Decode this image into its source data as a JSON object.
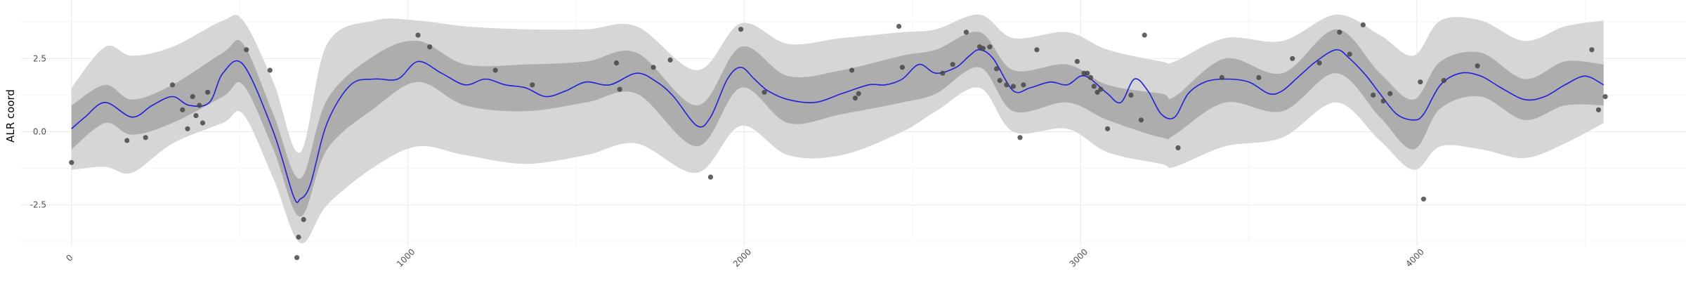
{
  "chart_data": {
    "type": "line",
    "title": "",
    "xlabel": "",
    "ylabel": "ALR coord",
    "xlim": [
      -150,
      4800
    ],
    "ylim": [
      -3.9,
      4.5
    ],
    "x_ticks": [
      0,
      1000,
      2000,
      3000,
      4000
    ],
    "x_tick_labels": [
      "0",
      "1000",
      "2000",
      "3000",
      "4000"
    ],
    "y_ticks": [
      -2.5,
      0.0,
      2.5
    ],
    "y_tick_labels": [
      "-2.5",
      "0.0",
      "2.5"
    ],
    "grid": true,
    "legend": "none",
    "colors": {
      "line": "#1f1fdc",
      "inner_band": "#adadad",
      "outer_band": "#d6d6d6",
      "points": "#474747",
      "grid_major": "#ebebeb",
      "grid_minor": "#f5f5f5"
    },
    "series": [
      {
        "kind": "mean-line",
        "x": [
          0,
          40,
          100,
          180,
          240,
          300,
          350,
          410,
          450,
          510,
          600,
          660,
          680,
          710,
          760,
          830,
          900,
          970,
          1030,
          1100,
          1170,
          1230,
          1290,
          1350,
          1410,
          1470,
          1530,
          1600,
          1680,
          1740,
          1790,
          1860,
          1900,
          1950,
          1990,
          2030,
          2070,
          2130,
          2210,
          2290,
          2370,
          2420,
          2470,
          2520,
          2570,
          2630,
          2670,
          2700,
          2740,
          2800,
          2850,
          2910,
          2960,
          3000,
          3030,
          3080,
          3120,
          3160,
          3200,
          3240,
          3280,
          3320,
          3370,
          3430,
          3500,
          3560,
          3600,
          3650,
          3700,
          3760,
          3800,
          3850,
          3890,
          3940,
          3990,
          4020,
          4070,
          4130,
          4190,
          4250,
          4320,
          4380,
          4440,
          4500,
          4555
        ],
        "y": [
          0.1,
          0.5,
          1.0,
          0.5,
          0.9,
          1.2,
          0.9,
          1.0,
          2.0,
          2.3,
          0.0,
          -2.2,
          -2.3,
          -1.8,
          0.3,
          1.6,
          1.8,
          1.8,
          2.4,
          2.0,
          1.6,
          1.8,
          1.6,
          1.5,
          1.2,
          1.4,
          1.7,
          1.6,
          2.0,
          1.7,
          1.2,
          0.2,
          0.5,
          1.8,
          2.2,
          1.8,
          1.4,
          1.1,
          1.0,
          1.3,
          1.6,
          1.6,
          1.8,
          2.3,
          2.0,
          2.2,
          2.6,
          2.8,
          2.5,
          1.4,
          1.5,
          1.7,
          1.6,
          1.9,
          1.8,
          1.3,
          1.0,
          1.8,
          1.4,
          0.6,
          0.5,
          1.3,
          1.7,
          1.8,
          1.7,
          1.3,
          1.4,
          1.9,
          2.4,
          2.8,
          2.5,
          1.9,
          1.3,
          0.6,
          0.4,
          0.6,
          1.6,
          2.0,
          1.9,
          1.5,
          1.1,
          1.2,
          1.6,
          1.9,
          1.6
        ]
      },
      {
        "kind": "inner-band",
        "x": [
          0,
          100,
          180,
          300,
          450,
          510,
          600,
          680,
          760,
          900,
          1030,
          1170,
          1350,
          1530,
          1680,
          1860,
          1990,
          2130,
          2290,
          2470,
          2570,
          2700,
          2800,
          2960,
          3080,
          3240,
          3280,
          3430,
          3600,
          3760,
          3890,
          3990,
          4070,
          4190,
          4320,
          4440,
          4555
        ],
        "lower": [
          -0.6,
          0.3,
          -0.1,
          0.3,
          1.2,
          1.6,
          -0.6,
          -2.9,
          -0.6,
          0.8,
          1.7,
          0.9,
          0.7,
          1.0,
          1.3,
          -0.5,
          1.5,
          0.3,
          0.6,
          1.0,
          1.3,
          2.2,
          0.7,
          1.0,
          0.4,
          -0.2,
          -0.1,
          1.0,
          0.7,
          2.0,
          0.5,
          -0.6,
          0.8,
          1.2,
          0.4,
          0.9,
          0.9
        ],
        "upper": [
          0.9,
          1.6,
          1.1,
          1.6,
          2.7,
          3.0,
          0.6,
          -1.6,
          1.1,
          2.6,
          3.1,
          2.3,
          2.3,
          2.4,
          2.7,
          0.9,
          2.9,
          1.9,
          2.1,
          2.6,
          2.8,
          3.4,
          2.1,
          2.3,
          1.6,
          1.3,
          1.2,
          2.5,
          2.0,
          3.5,
          2.0,
          1.1,
          2.4,
          2.7,
          1.8,
          2.4,
          2.3
        ]
      },
      {
        "kind": "outer-band",
        "x": [
          0,
          100,
          180,
          300,
          450,
          510,
          600,
          680,
          760,
          900,
          1030,
          1170,
          1350,
          1530,
          1680,
          1860,
          1990,
          2130,
          2290,
          2470,
          2570,
          2700,
          2800,
          2960,
          3080,
          3240,
          3280,
          3430,
          3600,
          3760,
          3890,
          3990,
          4070,
          4190,
          4320,
          4440,
          4555
        ],
        "lower": [
          -1.3,
          -1.2,
          -1.4,
          -0.4,
          0.3,
          0.6,
          -1.6,
          -3.8,
          -2.5,
          -1.2,
          -0.5,
          -0.8,
          -1.1,
          -0.8,
          -0.4,
          -1.4,
          0.2,
          -0.8,
          -0.8,
          0.0,
          0.7,
          1.5,
          0.0,
          0.1,
          -0.7,
          -1.1,
          -1.2,
          -0.5,
          -0.2,
          1.0,
          -0.3,
          -1.3,
          -0.5,
          -0.6,
          -0.9,
          -0.4,
          0.3
        ],
        "upper": [
          1.5,
          2.9,
          2.6,
          2.9,
          3.8,
          3.8,
          1.7,
          -0.7,
          3.0,
          3.8,
          3.8,
          3.6,
          3.5,
          3.5,
          3.6,
          2.1,
          3.7,
          3.0,
          3.2,
          3.4,
          3.5,
          4.0,
          3.2,
          3.4,
          2.8,
          2.4,
          2.4,
          3.2,
          3.1,
          4.0,
          3.3,
          2.6,
          3.8,
          3.8,
          3.1,
          3.6,
          3.8
        ]
      },
      {
        "kind": "observations",
        "x": [
          0,
          165,
          220,
          300,
          330,
          345,
          360,
          370,
          380,
          390,
          405,
          520,
          590,
          670,
          675,
          690,
          1030,
          1065,
          1260,
          1370,
          1620,
          1630,
          1730,
          1780,
          1900,
          1990,
          2060,
          2320,
          2330,
          2340,
          2460,
          2470,
          2590,
          2620,
          2660,
          2700,
          2710,
          2730,
          2750,
          2760,
          2780,
          2800,
          2820,
          2830,
          2870,
          2990,
          3010,
          3020,
          3030,
          3040,
          3050,
          3060,
          3080,
          3150,
          3180,
          3190,
          3290,
          3420,
          3530,
          3630,
          3710,
          3770,
          3800,
          3840,
          3870,
          3900,
          3920,
          4010,
          4020,
          4080,
          4180,
          4520,
          4540,
          4560
        ],
        "y": [
          -1.05,
          -0.3,
          -0.2,
          1.6,
          0.75,
          0.1,
          1.2,
          0.55,
          0.9,
          0.3,
          1.35,
          2.8,
          2.1,
          -4.3,
          -3.6,
          -3.0,
          3.3,
          2.9,
          2.1,
          1.6,
          2.35,
          1.45,
          2.2,
          2.45,
          -1.55,
          3.5,
          1.35,
          2.1,
          1.15,
          1.3,
          3.6,
          2.2,
          2.0,
          2.3,
          3.4,
          2.9,
          2.85,
          2.9,
          2.15,
          1.75,
          1.6,
          1.55,
          -0.2,
          1.6,
          2.8,
          2.4,
          2.0,
          2.0,
          1.85,
          1.55,
          1.35,
          1.45,
          0.1,
          1.25,
          0.4,
          3.3,
          -0.55,
          1.85,
          1.85,
          2.5,
          2.35,
          3.4,
          2.65,
          3.65,
          1.25,
          1.05,
          1.3,
          1.7,
          -2.3,
          1.75,
          2.25,
          2.8,
          0.75,
          1.2
        ]
      }
    ]
  }
}
